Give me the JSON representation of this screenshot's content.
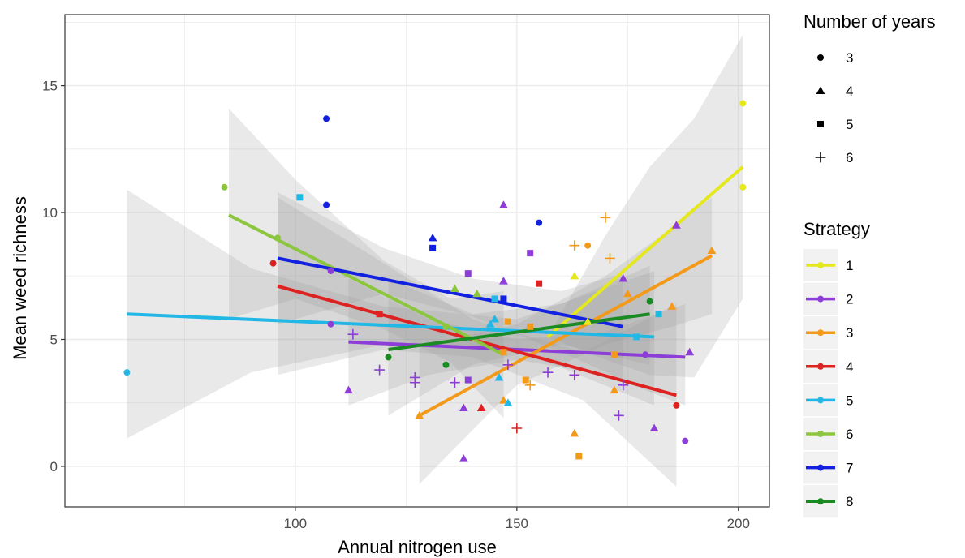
{
  "chart_data": {
    "type": "scatter",
    "xlabel": "Annual nitrogen use",
    "ylabel": "Mean weed richness",
    "xlim": [
      48,
      207
    ],
    "ylim": [
      -1.6,
      17.8
    ],
    "x_ticks": [
      100,
      150,
      200
    ],
    "y_ticks": [
      0,
      5,
      10,
      15
    ],
    "x_tick_labels": [
      "100",
      "150",
      "200"
    ],
    "y_tick_labels": [
      "0",
      "5",
      "10",
      "15"
    ],
    "grid": true,
    "background": "#ebebeb",
    "legend_position": "right",
    "shape_legend": {
      "title": "Number of years",
      "items": [
        {
          "label": "3",
          "shape": "circle"
        },
        {
          "label": "4",
          "shape": "triangle"
        },
        {
          "label": "5",
          "shape": "square"
        },
        {
          "label": "6",
          "shape": "plus"
        }
      ]
    },
    "color_legend": {
      "title": "Strategy",
      "items": [
        {
          "label": "1",
          "color": "#e5e81c"
        },
        {
          "label": "2",
          "color": "#8d3ed6"
        },
        {
          "label": "3",
          "color": "#f39a1a"
        },
        {
          "label": "4",
          "color": "#de2222"
        },
        {
          "label": "5",
          "color": "#22b8e6"
        },
        {
          "label": "6",
          "color": "#8cc63e"
        },
        {
          "label": "7",
          "color": "#1221e0"
        },
        {
          "label": "8",
          "color": "#1a8a22"
        }
      ]
    },
    "series": [
      {
        "name": "1",
        "color": "#e5e81c",
        "fit": {
          "x0": 157,
          "y0": 5.1,
          "x1": 201,
          "y1": 11.8
        },
        "band": [
          [
            157,
            5.1,
            5.1
          ],
          [
            170,
            4.2,
            9.1
          ],
          [
            180,
            3.6,
            11.8
          ],
          [
            190,
            3.5,
            13.7
          ],
          [
            201,
            6.6,
            17.0
          ]
        ],
        "points": [
          {
            "x": 201,
            "y": 14.3,
            "shape": "circle"
          },
          {
            "x": 201,
            "y": 11.0,
            "shape": "circle"
          },
          {
            "x": 163,
            "y": 7.5,
            "shape": "triangle"
          },
          {
            "x": 166,
            "y": 5.7,
            "shape": "triangle"
          }
        ]
      },
      {
        "name": "2",
        "color": "#8d3ed6",
        "fit": {
          "x0": 112,
          "y0": 4.9,
          "x1": 188,
          "y1": 4.3
        },
        "band": [
          [
            112,
            2.4,
            7.4
          ],
          [
            130,
            3.6,
            5.8
          ],
          [
            150,
            4.2,
            5.0
          ],
          [
            170,
            3.6,
            5.3
          ],
          [
            188,
            2.4,
            6.4
          ]
        ],
        "points": [
          {
            "x": 147,
            "y": 10.3,
            "shape": "triangle"
          },
          {
            "x": 186,
            "y": 9.5,
            "shape": "triangle"
          },
          {
            "x": 153,
            "y": 8.4,
            "shape": "square"
          },
          {
            "x": 108,
            "y": 7.7,
            "shape": "circle"
          },
          {
            "x": 139,
            "y": 7.6,
            "shape": "square"
          },
          {
            "x": 147,
            "y": 7.3,
            "shape": "triangle"
          },
          {
            "x": 174,
            "y": 7.4,
            "shape": "triangle"
          },
          {
            "x": 108,
            "y": 5.6,
            "shape": "circle"
          },
          {
            "x": 113,
            "y": 5.2,
            "shape": "plus"
          },
          {
            "x": 189,
            "y": 4.5,
            "shape": "triangle"
          },
          {
            "x": 179,
            "y": 4.4,
            "shape": "circle"
          },
          {
            "x": 148,
            "y": 4.0,
            "shape": "plus"
          },
          {
            "x": 119,
            "y": 3.8,
            "shape": "plus"
          },
          {
            "x": 157,
            "y": 3.7,
            "shape": "plus"
          },
          {
            "x": 127,
            "y": 3.5,
            "shape": "plus"
          },
          {
            "x": 127,
            "y": 3.3,
            "shape": "plus"
          },
          {
            "x": 136,
            "y": 3.3,
            "shape": "plus"
          },
          {
            "x": 139,
            "y": 3.4,
            "shape": "square"
          },
          {
            "x": 163,
            "y": 3.6,
            "shape": "plus"
          },
          {
            "x": 174,
            "y": 3.2,
            "shape": "plus"
          },
          {
            "x": 112,
            "y": 3.0,
            "shape": "triangle"
          },
          {
            "x": 138,
            "y": 2.3,
            "shape": "triangle"
          },
          {
            "x": 173,
            "y": 2.0,
            "shape": "plus"
          },
          {
            "x": 181,
            "y": 1.5,
            "shape": "triangle"
          },
          {
            "x": 188,
            "y": 1.0,
            "shape": "circle"
          },
          {
            "x": 138,
            "y": 0.3,
            "shape": "triangle"
          }
        ]
      },
      {
        "name": "3",
        "color": "#f39a1a",
        "fit": {
          "x0": 128,
          "y0": 2.0,
          "x1": 194,
          "y1": 8.3
        },
        "band": [
          [
            128,
            -0.7,
            4.7
          ],
          [
            150,
            3.2,
            5.6
          ],
          [
            170,
            4.8,
            7.5
          ],
          [
            185,
            5.5,
            9.4
          ],
          [
            194,
            6.0,
            10.6
          ]
        ],
        "points": [
          {
            "x": 194,
            "y": 8.5,
            "shape": "triangle"
          },
          {
            "x": 170,
            "y": 9.8,
            "shape": "plus"
          },
          {
            "x": 163,
            "y": 8.7,
            "shape": "plus"
          },
          {
            "x": 166,
            "y": 8.7,
            "shape": "circle"
          },
          {
            "x": 171,
            "y": 8.2,
            "shape": "plus"
          },
          {
            "x": 175,
            "y": 6.8,
            "shape": "triangle"
          },
          {
            "x": 185,
            "y": 6.3,
            "shape": "triangle"
          },
          {
            "x": 148,
            "y": 5.7,
            "shape": "square"
          },
          {
            "x": 153,
            "y": 5.5,
            "shape": "square"
          },
          {
            "x": 147,
            "y": 4.5,
            "shape": "square"
          },
          {
            "x": 172,
            "y": 4.4,
            "shape": "square"
          },
          {
            "x": 152,
            "y": 3.4,
            "shape": "square"
          },
          {
            "x": 153,
            "y": 3.2,
            "shape": "plus"
          },
          {
            "x": 172,
            "y": 3.0,
            "shape": "triangle"
          },
          {
            "x": 147,
            "y": 2.6,
            "shape": "triangle"
          },
          {
            "x": 128,
            "y": 2.0,
            "shape": "triangle"
          },
          {
            "x": 163,
            "y": 1.3,
            "shape": "triangle"
          },
          {
            "x": 164,
            "y": 0.4,
            "shape": "square"
          }
        ]
      },
      {
        "name": "4",
        "color": "#de2222",
        "fit": {
          "x0": 96,
          "y0": 7.1,
          "x1": 186,
          "y1": 2.8
        },
        "band": [
          [
            96,
            3.6,
            10.6
          ],
          [
            120,
            4.6,
            8.0
          ],
          [
            140,
            4.3,
            5.8
          ],
          [
            165,
            2.6,
            4.5
          ],
          [
            186,
            -0.8,
            6.4
          ]
        ],
        "points": [
          {
            "x": 95,
            "y": 8.0,
            "shape": "circle"
          },
          {
            "x": 155,
            "y": 7.2,
            "shape": "square"
          },
          {
            "x": 119,
            "y": 6.0,
            "shape": "square"
          },
          {
            "x": 186,
            "y": 2.4,
            "shape": "circle"
          },
          {
            "x": 142,
            "y": 2.3,
            "shape": "triangle"
          },
          {
            "x": 150,
            "y": 1.5,
            "shape": "plus"
          }
        ]
      },
      {
        "name": "5",
        "color": "#22b8e6",
        "fit": {
          "x0": 62,
          "y0": 6.0,
          "x1": 181,
          "y1": 5.1
        },
        "band": [
          [
            62,
            1.1,
            10.9
          ],
          [
            90,
            3.7,
            7.8
          ],
          [
            120,
            4.8,
            6.3
          ],
          [
            150,
            4.6,
            5.8
          ],
          [
            181,
            2.4,
            7.7
          ]
        ],
        "points": [
          {
            "x": 101,
            "y": 10.6,
            "shape": "square"
          },
          {
            "x": 145,
            "y": 6.6,
            "shape": "square"
          },
          {
            "x": 182,
            "y": 6.0,
            "shape": "square"
          },
          {
            "x": 144,
            "y": 5.6,
            "shape": "triangle"
          },
          {
            "x": 145,
            "y": 5.8,
            "shape": "triangle"
          },
          {
            "x": 177,
            "y": 5.1,
            "shape": "square"
          },
          {
            "x": 62,
            "y": 3.7,
            "shape": "circle"
          },
          {
            "x": 146,
            "y": 3.5,
            "shape": "triangle"
          },
          {
            "x": 148,
            "y": 2.5,
            "shape": "triangle"
          }
        ]
      },
      {
        "name": "6",
        "color": "#8cc63e",
        "fit": {
          "x0": 85,
          "y0": 9.9,
          "x1": 147,
          "y1": 4.4
        },
        "band": [
          [
            85,
            5.8,
            14.1
          ],
          [
            100,
            6.6,
            11.3
          ],
          [
            120,
            5.4,
            8.1
          ],
          [
            135,
            4.1,
            6.6
          ],
          [
            147,
            1.9,
            6.9
          ]
        ],
        "points": [
          {
            "x": 84,
            "y": 11.0,
            "shape": "circle"
          },
          {
            "x": 96,
            "y": 9.0,
            "shape": "circle"
          },
          {
            "x": 136,
            "y": 7.0,
            "shape": "triangle"
          },
          {
            "x": 141,
            "y": 6.8,
            "shape": "triangle"
          },
          {
            "x": 134,
            "y": 5.5,
            "shape": "circle"
          },
          {
            "x": 121,
            "y": 4.3,
            "shape": "circle"
          }
        ]
      },
      {
        "name": "7",
        "color": "#1221e0",
        "fit": {
          "x0": 96,
          "y0": 8.2,
          "x1": 174,
          "y1": 5.5
        },
        "band": [
          [
            96,
            5.6,
            10.8
          ],
          [
            120,
            6.8,
            8.6
          ],
          [
            140,
            5.9,
            7.4
          ],
          [
            160,
            4.5,
            6.9
          ],
          [
            174,
            3.4,
            7.6
          ]
        ],
        "points": [
          {
            "x": 107,
            "y": 13.7,
            "shape": "circle"
          },
          {
            "x": 107,
            "y": 10.3,
            "shape": "circle"
          },
          {
            "x": 155,
            "y": 9.6,
            "shape": "circle"
          },
          {
            "x": 131,
            "y": 9.0,
            "shape": "triangle"
          },
          {
            "x": 131,
            "y": 8.6,
            "shape": "square"
          },
          {
            "x": 147,
            "y": 6.6,
            "shape": "square"
          }
        ]
      },
      {
        "name": "8",
        "color": "#1a8a22",
        "fit": {
          "x0": 121,
          "y0": 4.6,
          "x1": 180,
          "y1": 6.0
        },
        "band": [
          [
            121,
            2.0,
            7.4
          ],
          [
            140,
            4.0,
            6.0
          ],
          [
            160,
            4.8,
            6.4
          ],
          [
            180,
            4.0,
            7.9
          ]
        ],
        "points": [
          {
            "x": 180,
            "y": 6.5,
            "shape": "circle"
          },
          {
            "x": 134,
            "y": 4.0,
            "shape": "circle"
          },
          {
            "x": 121,
            "y": 4.3,
            "shape": "circle"
          }
        ]
      }
    ]
  }
}
